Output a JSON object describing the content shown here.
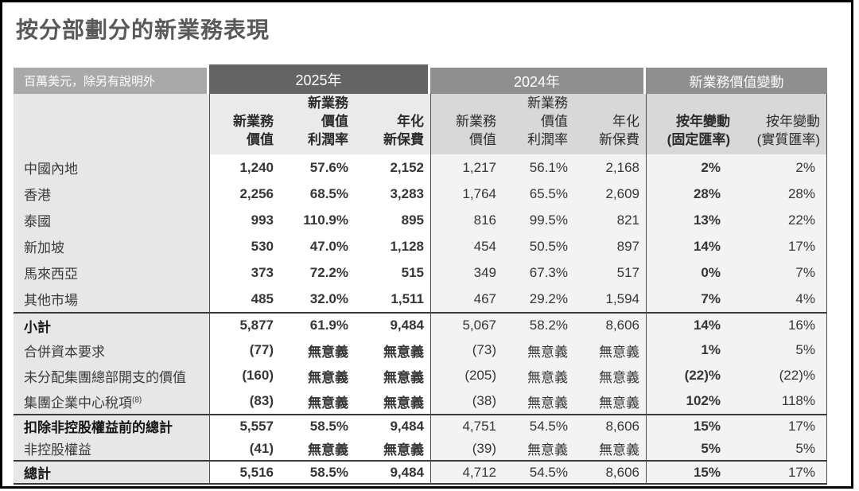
{
  "title": "按分部劃分的新業務表現",
  "table": {
    "unit_note": "百萬美元，除另有說明外",
    "col_groups": [
      "2025年",
      "2024年",
      "新業務價值變動"
    ],
    "columns": [
      {
        "id": "nbv-2025",
        "lines": [
          "新業務",
          "價值"
        ]
      },
      {
        "id": "margin-2025",
        "lines": [
          "新業務",
          "價值",
          "利潤率"
        ]
      },
      {
        "id": "anp-2025",
        "lines": [
          "年化",
          "新保費"
        ]
      },
      {
        "id": "nbv-2024",
        "lines": [
          "新業務",
          "價值"
        ]
      },
      {
        "id": "margin-2024",
        "lines": [
          "新業務",
          "價值",
          "利潤率"
        ]
      },
      {
        "id": "anp-2024",
        "lines": [
          "年化",
          "新保費"
        ]
      },
      {
        "id": "chg-cer",
        "lines": [
          "按年變動",
          "(固定匯率)"
        ]
      },
      {
        "id": "chg-aer",
        "lines": [
          "按年變動",
          "(實質匯率)"
        ]
      }
    ],
    "rows": [
      {
        "label": "中國內地",
        "bold": false,
        "divider": false,
        "y2025": [
          "1,240",
          "57.6%",
          "2,152"
        ],
        "y2024": [
          "1,217",
          "56.1%",
          "2,168"
        ],
        "change": [
          "2%",
          "2%"
        ]
      },
      {
        "label": "香港",
        "bold": false,
        "divider": false,
        "y2025": [
          "2,256",
          "68.5%",
          "3,283"
        ],
        "y2024": [
          "1,764",
          "65.5%",
          "2,609"
        ],
        "change": [
          "28%",
          "28%"
        ]
      },
      {
        "label": "泰國",
        "bold": false,
        "divider": false,
        "y2025": [
          "993",
          "110.9%",
          "895"
        ],
        "y2024": [
          "816",
          "99.5%",
          "821"
        ],
        "change": [
          "13%",
          "22%"
        ]
      },
      {
        "label": "新加坡",
        "bold": false,
        "divider": false,
        "y2025": [
          "530",
          "47.0%",
          "1,128"
        ],
        "y2024": [
          "454",
          "50.5%",
          "897"
        ],
        "change": [
          "14%",
          "17%"
        ]
      },
      {
        "label": "馬來西亞",
        "bold": false,
        "divider": false,
        "y2025": [
          "373",
          "72.2%",
          "515"
        ],
        "y2024": [
          "349",
          "67.3%",
          "517"
        ],
        "change": [
          "0%",
          "7%"
        ]
      },
      {
        "label": "其他市場",
        "bold": false,
        "divider": false,
        "y2025": [
          "485",
          "32.0%",
          "1,511"
        ],
        "y2024": [
          "467",
          "29.2%",
          "1,594"
        ],
        "change": [
          "7%",
          "4%"
        ]
      },
      {
        "label": "小計",
        "bold": true,
        "divider": true,
        "y2025": [
          "5,877",
          "61.9%",
          "9,484"
        ],
        "y2024": [
          "5,067",
          "58.2%",
          "8,606"
        ],
        "change": [
          "14%",
          "16%"
        ]
      },
      {
        "label": "合併資本要求",
        "bold": false,
        "divider": false,
        "y2025": [
          "(77)",
          "無意義",
          "無意義"
        ],
        "y2024": [
          "(73)",
          "無意義",
          "無意義"
        ],
        "change": [
          "1%",
          "5%"
        ]
      },
      {
        "label": "未分配集團總部開支的價值",
        "bold": false,
        "divider": false,
        "y2025": [
          "(160)",
          "無意義",
          "無意義"
        ],
        "y2024": [
          "(205)",
          "無意義",
          "無意義"
        ],
        "change": [
          "(22)%",
          "(22)%"
        ]
      },
      {
        "label": "集團企業中心稅項",
        "sup": "(8)",
        "bold": false,
        "divider": false,
        "y2025": [
          "(83)",
          "無意義",
          "無意義"
        ],
        "y2024": [
          "(38)",
          "無意義",
          "無意義"
        ],
        "change": [
          "102%",
          "118%"
        ]
      },
      {
        "label": "扣除非控股權益前的總計",
        "bold": true,
        "divider": true,
        "y2025": [
          "5,557",
          "58.5%",
          "9,484"
        ],
        "y2024": [
          "4,751",
          "54.5%",
          "8,606"
        ],
        "change": [
          "15%",
          "17%"
        ]
      },
      {
        "label": "非控股權益",
        "bold": false,
        "divider": false,
        "y2025": [
          "(41)",
          "無意義",
          "無意義"
        ],
        "y2024": [
          "(39)",
          "無意義",
          "無意義"
        ],
        "change": [
          "5%",
          "5%"
        ]
      },
      {
        "label": "總計",
        "bold": true,
        "divider": true,
        "y2025": [
          "5,516",
          "58.5%",
          "9,484"
        ],
        "y2024": [
          "4,712",
          "54.5%",
          "8,606"
        ],
        "change": [
          "15%",
          "17%"
        ]
      }
    ]
  }
}
